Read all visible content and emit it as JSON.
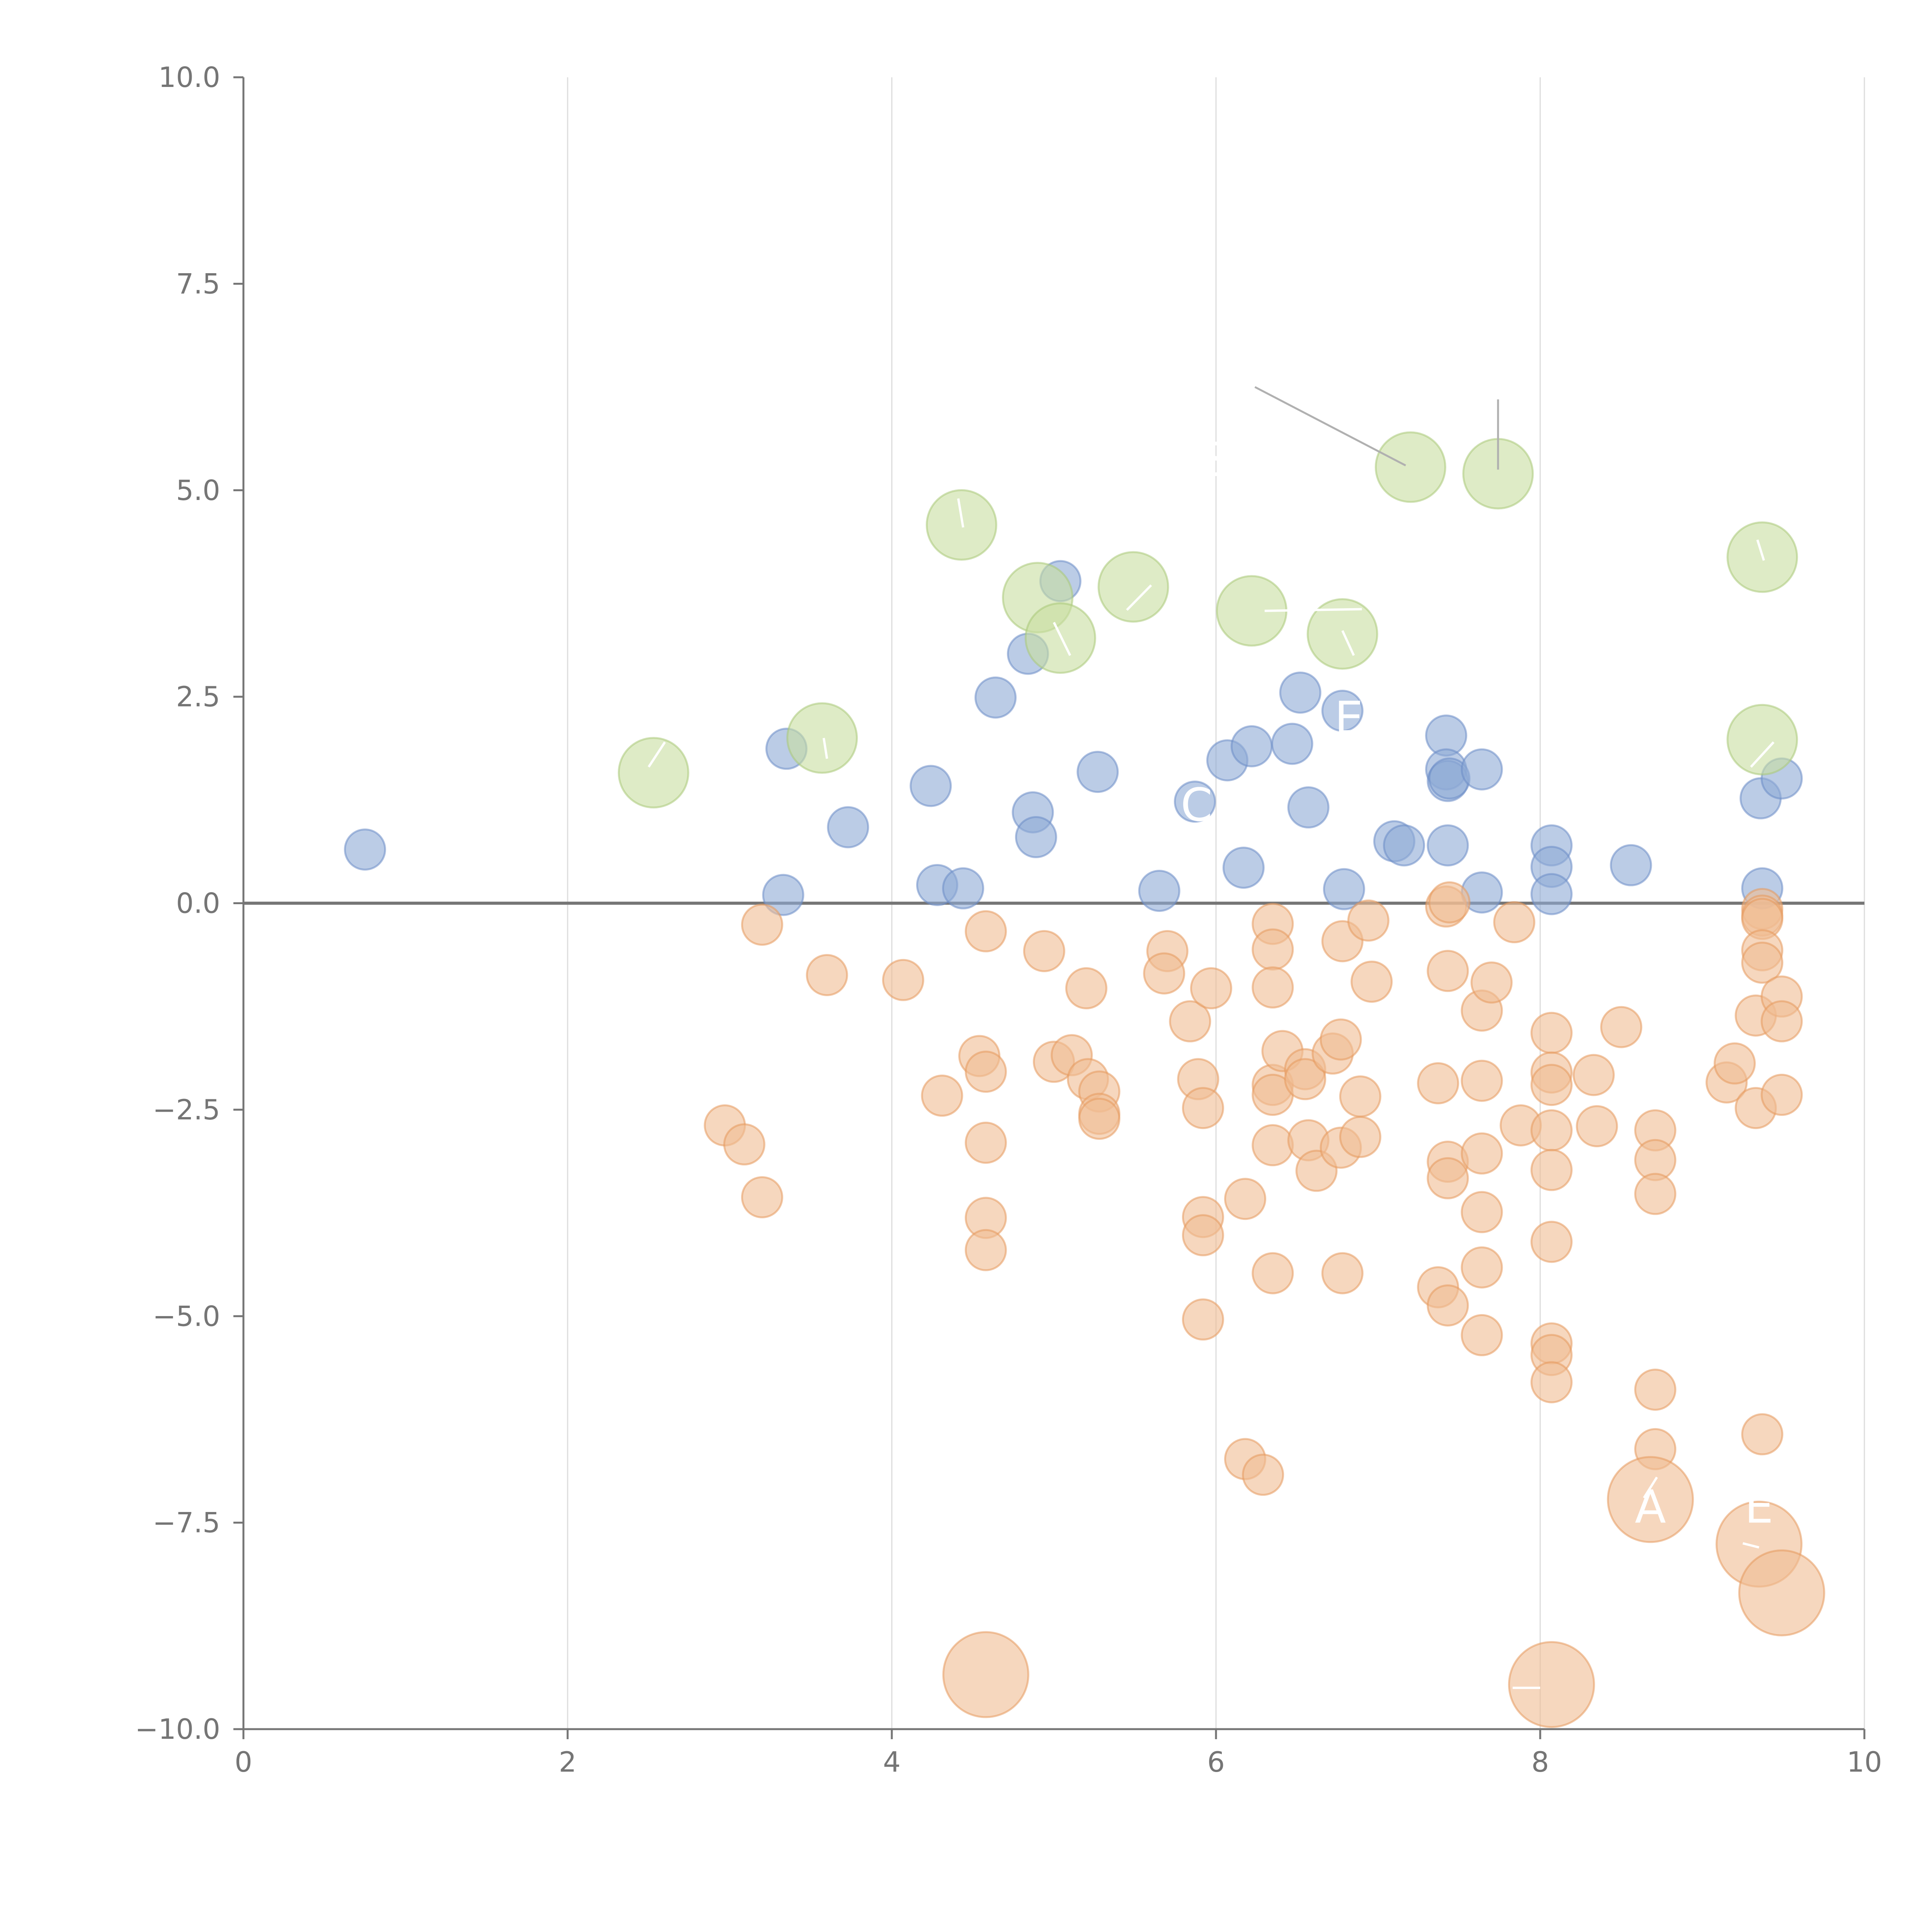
{
  "chart_data": {
    "type": "scatter",
    "title": "",
    "xlabel": "",
    "ylabel": "",
    "xlim": [
      0,
      10
    ],
    "ylim": [
      -10,
      10
    ],
    "x_ticks": [
      0,
      2,
      4,
      6,
      8,
      10
    ],
    "x_tick_labels": [
      "0",
      "2",
      "4",
      "6",
      "8",
      "10"
    ],
    "y_ticks": [
      10,
      7.5,
      5,
      2.5,
      0,
      -2.5,
      -5,
      -7.5,
      -10
    ],
    "y_tick_labels": [
      "10.0",
      "7.5",
      "5.0",
      "2.5",
      "0.0",
      "−2.5",
      "−5.0",
      "−7.5",
      "−10.0"
    ],
    "grid": "vertical lines at x ticks",
    "zero_line": 0,
    "legend": "none",
    "series": [
      {
        "name": "blue",
        "color": "#8eaad6",
        "stroke": "#6b8cc6",
        "points": [
          {
            "x": 0.75,
            "y": 0.65
          },
          {
            "x": 3.33,
            "y": 0.1
          },
          {
            "x": 3.35,
            "y": 1.87
          },
          {
            "x": 3.73,
            "y": 0.92
          },
          {
            "x": 4.24,
            "y": 1.42
          },
          {
            "x": 4.28,
            "y": 0.22
          },
          {
            "x": 4.44,
            "y": 0.18
          },
          {
            "x": 4.64,
            "y": 2.49
          },
          {
            "x": 4.84,
            "y": 3.02
          },
          {
            "x": 4.87,
            "y": 1.1
          },
          {
            "x": 4.89,
            "y": 0.8
          },
          {
            "x": 5.04,
            "y": 3.9
          },
          {
            "x": 5.27,
            "y": 1.59
          },
          {
            "x": 5.65,
            "y": 0.15
          },
          {
            "x": 5.87,
            "y": 1.23
          },
          {
            "x": 6.07,
            "y": 1.73
          },
          {
            "x": 6.17,
            "y": 0.43
          },
          {
            "x": 6.22,
            "y": 1.9
          },
          {
            "x": 6.47,
            "y": 1.93
          },
          {
            "x": 6.52,
            "y": 2.55
          },
          {
            "x": 6.57,
            "y": 1.16
          },
          {
            "x": 6.78,
            "y": 2.33
          },
          {
            "x": 6.79,
            "y": 0.17
          },
          {
            "x": 7.1,
            "y": 0.75
          },
          {
            "x": 7.16,
            "y": 0.7
          },
          {
            "x": 7.42,
            "y": 2.03
          },
          {
            "x": 7.42,
            "y": 1.62
          },
          {
            "x": 7.43,
            "y": 1.48
          },
          {
            "x": 7.43,
            "y": 0.7
          },
          {
            "x": 7.44,
            "y": 1.51
          },
          {
            "x": 7.64,
            "y": 1.62
          },
          {
            "x": 7.64,
            "y": 0.13
          },
          {
            "x": 8.07,
            "y": 0.7
          },
          {
            "x": 8.07,
            "y": 0.44
          },
          {
            "x": 8.07,
            "y": 0.11
          },
          {
            "x": 8.56,
            "y": 0.46
          },
          {
            "x": 9.36,
            "y": 1.27
          },
          {
            "x": 9.37,
            "y": 0.18
          },
          {
            "x": 9.49,
            "y": 1.51
          }
        ]
      },
      {
        "name": "orange",
        "color": "#f0bc92",
        "stroke": "#e6995c",
        "points": [
          {
            "x": 2.97,
            "y": -2.69
          },
          {
            "x": 3.09,
            "y": -2.92
          },
          {
            "x": 3.2,
            "y": -3.56
          },
          {
            "x": 3.2,
            "y": -0.26
          },
          {
            "x": 3.6,
            "y": -0.87
          },
          {
            "x": 4.07,
            "y": -0.93
          },
          {
            "x": 4.31,
            "y": -2.33
          },
          {
            "x": 4.54,
            "y": -1.85
          },
          {
            "x": 4.58,
            "y": -0.34
          },
          {
            "x": 4.58,
            "y": -2.04
          },
          {
            "x": 4.58,
            "y": -2.9
          },
          {
            "x": 4.58,
            "y": -3.81
          },
          {
            "x": 4.58,
            "y": -4.2
          },
          {
            "x": 4.94,
            "y": -0.58
          },
          {
            "x": 5.0,
            "y": -1.92
          },
          {
            "x": 5.11,
            "y": -1.84
          },
          {
            "x": 5.2,
            "y": -1.03
          },
          {
            "x": 5.21,
            "y": -2.13
          },
          {
            "x": 5.28,
            "y": -2.28
          },
          {
            "x": 5.28,
            "y": -2.55
          },
          {
            "x": 5.28,
            "y": -2.61
          },
          {
            "x": 5.7,
            "y": -0.58
          },
          {
            "x": 5.68,
            "y": -0.85
          },
          {
            "x": 5.84,
            "y": -1.43
          },
          {
            "x": 5.89,
            "y": -2.13
          },
          {
            "x": 5.92,
            "y": -2.48
          },
          {
            "x": 5.92,
            "y": -3.8
          },
          {
            "x": 5.92,
            "y": -4.02
          },
          {
            "x": 5.92,
            "y": -5.04
          },
          {
            "x": 5.97,
            "y": -1.03
          },
          {
            "x": 6.18,
            "y": -3.58
          },
          {
            "x": 6.18,
            "y": -6.73
          },
          {
            "x": 6.29,
            "y": -6.92
          },
          {
            "x": 6.35,
            "y": -0.25
          },
          {
            "x": 6.35,
            "y": -0.56
          },
          {
            "x": 6.35,
            "y": -1.02
          },
          {
            "x": 6.35,
            "y": -2.2
          },
          {
            "x": 6.35,
            "y": -2.32
          },
          {
            "x": 6.35,
            "y": -2.93
          },
          {
            "x": 6.35,
            "y": -4.48
          },
          {
            "x": 6.41,
            "y": -1.79
          },
          {
            "x": 6.55,
            "y": -2.01
          },
          {
            "x": 6.55,
            "y": -2.13
          },
          {
            "x": 6.57,
            "y": -2.87
          },
          {
            "x": 6.62,
            "y": -3.24
          },
          {
            "x": 6.72,
            "y": -1.82
          },
          {
            "x": 6.77,
            "y": -1.65
          },
          {
            "x": 6.77,
            "y": -2.96
          },
          {
            "x": 6.78,
            "y": -0.46
          },
          {
            "x": 6.78,
            "y": -4.48
          },
          {
            "x": 6.89,
            "y": -2.34
          },
          {
            "x": 6.89,
            "y": -2.83
          },
          {
            "x": 6.94,
            "y": -0.21
          },
          {
            "x": 6.96,
            "y": -0.95
          },
          {
            "x": 7.37,
            "y": -4.65
          },
          {
            "x": 7.37,
            "y": -2.18
          },
          {
            "x": 7.42,
            "y": -0.04
          },
          {
            "x": 7.43,
            "y": -0.82
          },
          {
            "x": 7.43,
            "y": -3.13
          },
          {
            "x": 7.43,
            "y": -3.33
          },
          {
            "x": 7.43,
            "y": -4.87
          },
          {
            "x": 7.44,
            "y": 0.01
          },
          {
            "x": 7.64,
            "y": -1.3
          },
          {
            "x": 7.64,
            "y": -2.15
          },
          {
            "x": 7.64,
            "y": -3.03
          },
          {
            "x": 7.64,
            "y": -3.74
          },
          {
            "x": 7.64,
            "y": -4.41
          },
          {
            "x": 7.64,
            "y": -5.23
          },
          {
            "x": 7.7,
            "y": -0.96
          },
          {
            "x": 7.84,
            "y": -0.23
          },
          {
            "x": 7.88,
            "y": -2.69
          },
          {
            "x": 8.07,
            "y": -1.57
          },
          {
            "x": 8.07,
            "y": -2.05
          },
          {
            "x": 8.07,
            "y": -2.2
          },
          {
            "x": 8.07,
            "y": -2.75
          },
          {
            "x": 8.07,
            "y": -3.23
          },
          {
            "x": 8.07,
            "y": -4.1
          },
          {
            "x": 8.07,
            "y": -5.33
          },
          {
            "x": 8.07,
            "y": -5.47
          },
          {
            "x": 8.07,
            "y": -5.8
          },
          {
            "x": 8.33,
            "y": -2.08
          },
          {
            "x": 8.35,
            "y": -2.7
          },
          {
            "x": 8.5,
            "y": -1.5
          },
          {
            "x": 8.71,
            "y": -2.75
          },
          {
            "x": 8.71,
            "y": -3.11
          },
          {
            "x": 8.71,
            "y": -3.52
          },
          {
            "x": 8.71,
            "y": -5.89
          },
          {
            "x": 8.71,
            "y": -6.61
          },
          {
            "x": 9.15,
            "y": -2.17
          },
          {
            "x": 9.2,
            "y": -1.94
          },
          {
            "x": 9.33,
            "y": -1.36
          },
          {
            "x": 9.33,
            "y": -2.48
          },
          {
            "x": 9.37,
            "y": -0.07
          },
          {
            "x": 9.37,
            "y": -0.15
          },
          {
            "x": 9.37,
            "y": -0.19
          },
          {
            "x": 9.37,
            "y": -0.57
          },
          {
            "x": 9.37,
            "y": -0.72
          },
          {
            "x": 9.37,
            "y": -6.43
          },
          {
            "x": 9.49,
            "y": -1.13
          },
          {
            "x": 9.49,
            "y": -1.43
          },
          {
            "x": 9.49,
            "y": -2.32
          }
        ]
      },
      {
        "name": "green",
        "color": "#c8dea0",
        "stroke": "#a9c978",
        "points": [
          {
            "x": 2.53,
            "y": 1.58
          },
          {
            "x": 3.57,
            "y": 2.0
          },
          {
            "x": 4.43,
            "y": 4.58
          },
          {
            "x": 4.9,
            "y": 3.7
          },
          {
            "x": 5.04,
            "y": 3.21
          },
          {
            "x": 5.49,
            "y": 3.83
          },
          {
            "x": 6.22,
            "y": 3.54
          },
          {
            "x": 6.78,
            "y": 3.26
          },
          {
            "x": 7.2,
            "y": 5.28
          },
          {
            "x": 7.74,
            "y": 5.2
          },
          {
            "x": 9.37,
            "y": 4.19
          },
          {
            "x": 9.37,
            "y": 1.98
          }
        ]
      },
      {
        "name": "orange-large",
        "color": "#f0bc92",
        "stroke": "#e6995c",
        "points": [
          {
            "x": 4.58,
            "y": -9.34
          },
          {
            "x": 8.07,
            "y": -9.46
          },
          {
            "x": 8.68,
            "y": -7.22
          },
          {
            "x": 9.35,
            "y": -7.76
          },
          {
            "x": 9.49,
            "y": -8.35
          }
        ]
      }
    ],
    "annotations": [
      {
        "text": "A",
        "x": 8.68,
        "y": -7.5
      },
      {
        "text": "E",
        "x": 9.35,
        "y": -7.5
      },
      {
        "text": "C",
        "x": 5.88,
        "y": 1.0
      },
      {
        "text": "E",
        "x": 6.82,
        "y": 2.05
      },
      {
        "text": "S",
        "x": 6.0,
        "y": 5.18
      }
    ]
  }
}
